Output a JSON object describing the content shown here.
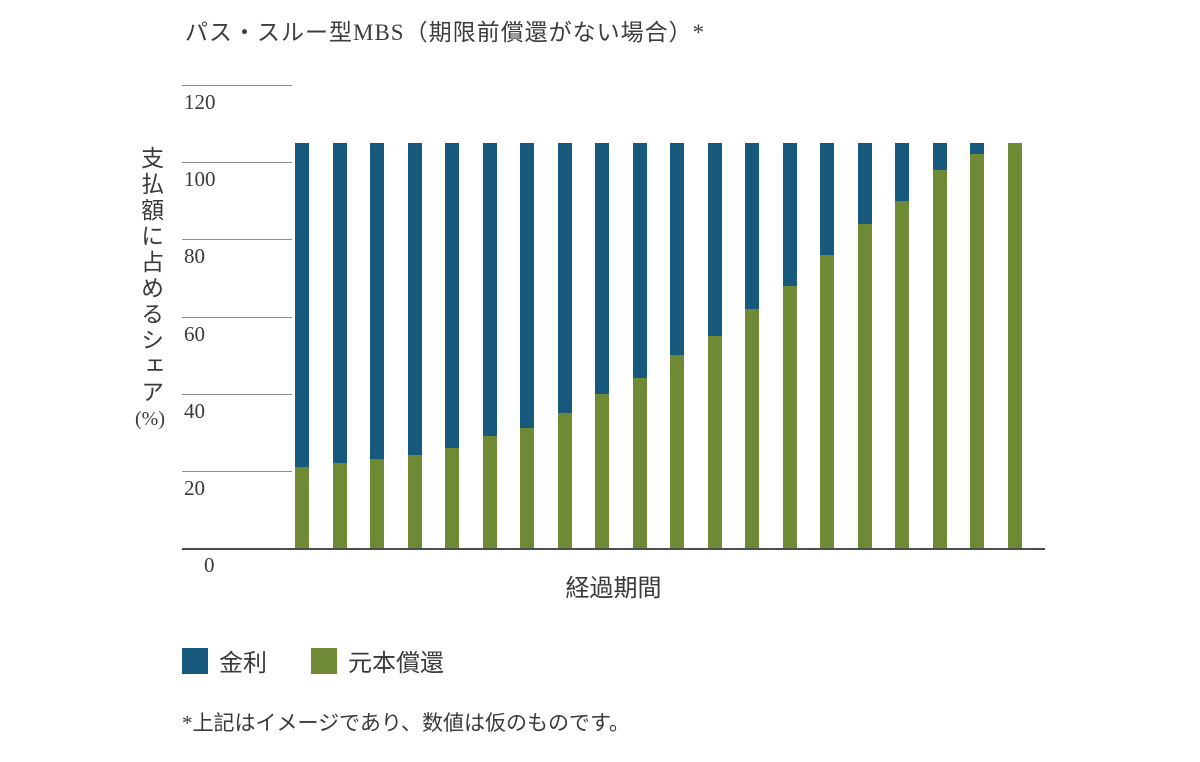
{
  "page": {
    "background": "#ffffff"
  },
  "chart_data": {
    "type": "bar",
    "stacked": true,
    "title": "パス・スルー型MBS（期限前償還がない場合）*",
    "xlabel": "経過期間",
    "ylabel": "支払額に占めるシェア(%)",
    "ylabel_main": "支払額に占めるシェア",
    "ylabel_unit": "(%)",
    "ylim": [
      0,
      120
    ],
    "yticks": [
      120,
      100,
      80,
      60,
      40,
      20,
      0
    ],
    "bar_total": 105,
    "grid": "short-left-tick-lines-only",
    "legend_position": "bottom-left",
    "series": [
      {
        "name": "金利",
        "color": "#17597C",
        "values": [
          84,
          83,
          82,
          81,
          79,
          76,
          74,
          70,
          65,
          61,
          55,
          50,
          43,
          37,
          29,
          21,
          15,
          7,
          3,
          0
        ]
      },
      {
        "name": "元本償還",
        "color": "#6F8A35",
        "values": [
          21,
          22,
          23,
          24,
          26,
          29,
          31,
          35,
          40,
          44,
          50,
          55,
          62,
          68,
          76,
          84,
          90,
          98,
          102,
          105
        ]
      }
    ],
    "legend": [
      {
        "label": "金利",
        "color": "#17597C"
      },
      {
        "label": "元本償還",
        "color": "#6F8A35"
      }
    ]
  },
  "footnote": "*上記はイメージであり、数値は仮のものです。"
}
